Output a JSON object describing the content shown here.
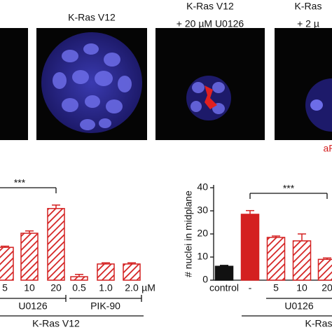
{
  "panels": [
    {
      "title": [
        "K-Ras V12"
      ]
    },
    {
      "title": [
        "K-Ras V12",
        "+ 20 µM U0126"
      ]
    },
    {
      "title": [
        "K-Ras",
        "+ 2 µ"
      ]
    }
  ],
  "stain_label": "aP",
  "chart_data": [
    {
      "type": "bar",
      "categories": [
        "5",
        "10",
        "20",
        "0.5",
        "1.0",
        "2.0"
      ],
      "values": [
        14.2,
        20.3,
        31,
        1.5,
        7,
        7
      ],
      "errors": [
        0.5,
        1,
        1.5,
        1,
        0.5,
        0.5
      ],
      "color": "#d42020",
      "unit": "µM",
      "groups": [
        {
          "label": "U0126",
          "from": 0,
          "to": 2
        },
        {
          "label": "PIK-90",
          "from": 3,
          "to": 5
        }
      ],
      "condition": "K-Ras V12",
      "significance": "***",
      "ylim": [
        0,
        40
      ]
    },
    {
      "type": "bar",
      "ylabel": "# nuclei in midplane",
      "categories": [
        "control",
        "-",
        "5",
        "10",
        "20"
      ],
      "values": [
        6,
        28.5,
        18.5,
        17,
        9
      ],
      "errors": [
        0.4,
        1.6,
        0.6,
        3,
        0.6
      ],
      "colors": [
        "#111111",
        "#d42020",
        "#d42020",
        "#d42020",
        "#d42020"
      ],
      "styles": [
        "solid",
        "solid",
        "hatched",
        "hatched",
        "hatched"
      ],
      "groups": [
        {
          "label": "U0126",
          "from": 2,
          "to": 4
        }
      ],
      "condition": "K-Ras",
      "significance": "***",
      "ylim": [
        0,
        40
      ],
      "yticks": [
        0,
        10,
        20,
        30,
        40
      ]
    }
  ]
}
